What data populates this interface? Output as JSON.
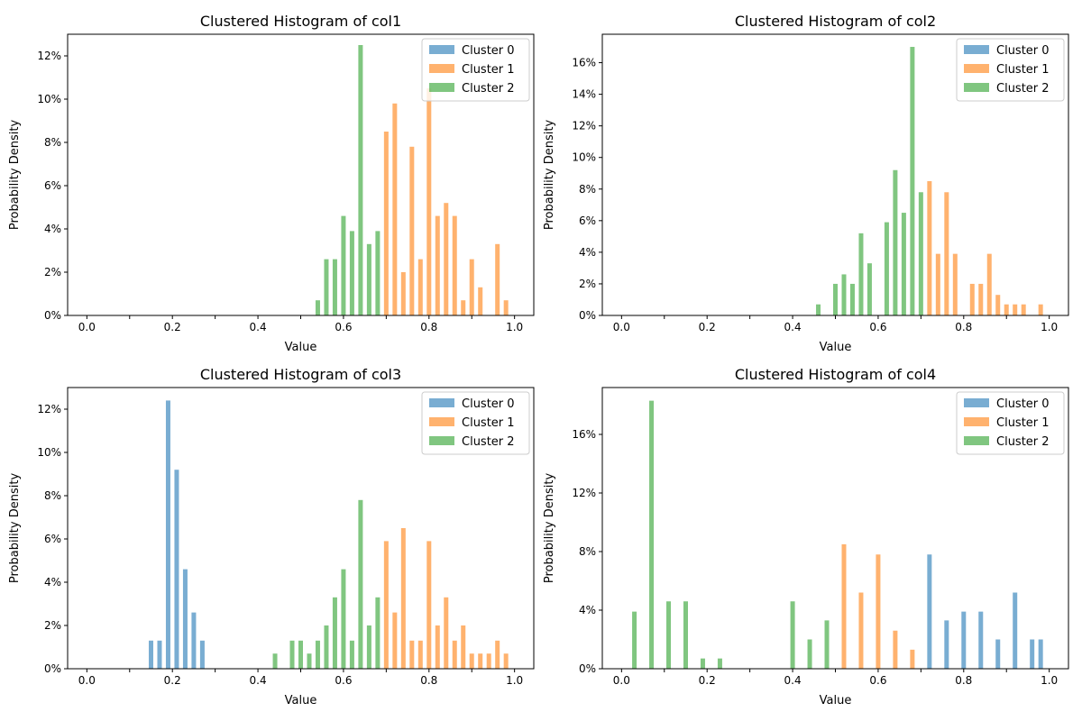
{
  "chart_data": [
    {
      "type": "bar",
      "title": "Clustered Histogram of col1",
      "xlabel": "Value",
      "ylabel": "Probability Density",
      "xlim": [
        -0.045,
        1.045
      ],
      "ylim": [
        0,
        13
      ],
      "x_ticks": [
        0.0,
        0.2,
        0.4,
        0.6,
        0.8,
        1.0
      ],
      "x_tick_labels": [
        "0.0",
        "0.2",
        "0.4",
        "0.6",
        "0.8",
        "1.0"
      ],
      "y_ticks": [
        0,
        2,
        4,
        6,
        8,
        10,
        12
      ],
      "y_tick_labels": [
        "0%",
        "2%",
        "4%",
        "6%",
        "8%",
        "10%",
        "12%"
      ],
      "legend_position": "top-right",
      "series": [
        {
          "name": "Cluster 0",
          "color": "#1f77b4",
          "x": [],
          "values": []
        },
        {
          "name": "Cluster 1",
          "color": "#ff7f0e",
          "x": [
            0.7,
            0.72,
            0.74,
            0.76,
            0.78,
            0.8,
            0.82,
            0.84,
            0.86,
            0.88,
            0.9,
            0.92,
            0.96,
            0.98
          ],
          "values": [
            8.5,
            9.8,
            2.0,
            7.8,
            2.6,
            10.5,
            4.6,
            5.2,
            4.6,
            0.7,
            2.6,
            1.3,
            3.3,
            0.7
          ]
        },
        {
          "name": "Cluster 2",
          "color": "#2ca02c",
          "x": [
            0.54,
            0.56,
            0.58,
            0.6,
            0.62,
            0.64,
            0.66,
            0.68
          ],
          "values": [
            0.7,
            2.6,
            2.6,
            4.6,
            3.9,
            12.5,
            3.3,
            3.9
          ]
        }
      ]
    },
    {
      "type": "bar",
      "title": "Clustered Histogram of col2",
      "xlabel": "Value",
      "ylabel": "Probability Density",
      "xlim": [
        -0.045,
        1.045
      ],
      "ylim": [
        0,
        17.8
      ],
      "x_ticks": [
        0.0,
        0.2,
        0.4,
        0.6,
        0.8,
        1.0
      ],
      "x_tick_labels": [
        "0.0",
        "0.2",
        "0.4",
        "0.6",
        "0.8",
        "1.0"
      ],
      "y_ticks": [
        0,
        2,
        4,
        6,
        8,
        10,
        12,
        14,
        16
      ],
      "y_tick_labels": [
        "0%",
        "2%",
        "4%",
        "6%",
        "8%",
        "10%",
        "12%",
        "14%",
        "16%"
      ],
      "legend_position": "top-right",
      "series": [
        {
          "name": "Cluster 0",
          "color": "#1f77b4",
          "x": [],
          "values": []
        },
        {
          "name": "Cluster 1",
          "color": "#ff7f0e",
          "x": [
            0.72,
            0.74,
            0.76,
            0.78,
            0.82,
            0.84,
            0.86,
            0.88,
            0.9,
            0.92,
            0.94,
            0.98
          ],
          "values": [
            8.5,
            3.9,
            7.8,
            3.9,
            2.0,
            2.0,
            3.9,
            1.3,
            0.7,
            0.7,
            0.7,
            0.7
          ]
        },
        {
          "name": "Cluster 2",
          "color": "#2ca02c",
          "x": [
            0.46,
            0.5,
            0.52,
            0.54,
            0.56,
            0.58,
            0.62,
            0.64,
            0.66,
            0.68,
            0.7
          ],
          "values": [
            0.7,
            2.0,
            2.6,
            2.0,
            5.2,
            3.3,
            5.9,
            9.2,
            6.5,
            17.0,
            7.8
          ]
        }
      ]
    },
    {
      "type": "bar",
      "title": "Clustered Histogram of col3",
      "xlabel": "Value",
      "ylabel": "Probability Density",
      "xlim": [
        -0.045,
        1.045
      ],
      "ylim": [
        0,
        13
      ],
      "x_ticks": [
        0.0,
        0.2,
        0.4,
        0.6,
        0.8,
        1.0
      ],
      "x_tick_labels": [
        "0.0",
        "0.2",
        "0.4",
        "0.6",
        "0.8",
        "1.0"
      ],
      "y_ticks": [
        0,
        2,
        4,
        6,
        8,
        10,
        12
      ],
      "y_tick_labels": [
        "0%",
        "2%",
        "4%",
        "6%",
        "8%",
        "10%",
        "12%"
      ],
      "legend_position": "top-right",
      "series": [
        {
          "name": "Cluster 0",
          "color": "#1f77b4",
          "x": [
            0.15,
            0.17,
            0.19,
            0.21,
            0.23,
            0.25,
            0.27
          ],
          "values": [
            1.3,
            1.3,
            12.4,
            9.2,
            4.6,
            2.6,
            1.3
          ]
        },
        {
          "name": "Cluster 1",
          "color": "#ff7f0e",
          "x": [
            0.7,
            0.72,
            0.74,
            0.76,
            0.78,
            0.8,
            0.82,
            0.84,
            0.86,
            0.88,
            0.9,
            0.92,
            0.94,
            0.96,
            0.98
          ],
          "values": [
            5.9,
            2.6,
            6.5,
            1.3,
            1.3,
            5.9,
            2.0,
            3.3,
            1.3,
            2.0,
            0.7,
            0.7,
            0.7,
            1.3,
            0.7
          ]
        },
        {
          "name": "Cluster 2",
          "color": "#2ca02c",
          "x": [
            0.44,
            0.48,
            0.5,
            0.52,
            0.54,
            0.56,
            0.58,
            0.6,
            0.62,
            0.64,
            0.66,
            0.68
          ],
          "values": [
            0.7,
            1.3,
            1.3,
            0.7,
            1.3,
            2.0,
            3.3,
            4.6,
            1.3,
            7.8,
            2.0,
            3.3
          ]
        }
      ]
    },
    {
      "type": "bar",
      "title": "Clustered Histogram of col4",
      "xlabel": "Value",
      "ylabel": "Probability Density",
      "xlim": [
        -0.045,
        1.045
      ],
      "ylim": [
        0,
        19.2
      ],
      "x_ticks": [
        0.0,
        0.2,
        0.4,
        0.6,
        0.8,
        1.0
      ],
      "x_tick_labels": [
        "0.0",
        "0.2",
        "0.4",
        "0.6",
        "0.8",
        "1.0"
      ],
      "y_ticks": [
        0,
        4,
        8,
        12,
        16
      ],
      "y_tick_labels": [
        "0%",
        "4%",
        "8%",
        "12%",
        "16%"
      ],
      "legend_position": "top-right",
      "series": [
        {
          "name": "Cluster 0",
          "color": "#1f77b4",
          "x": [
            0.72,
            0.76,
            0.8,
            0.84,
            0.88,
            0.92,
            0.96,
            0.98
          ],
          "values": [
            7.8,
            3.3,
            3.9,
            3.9,
            2.0,
            5.2,
            2.0,
            2.0
          ]
        },
        {
          "name": "Cluster 1",
          "color": "#ff7f0e",
          "x": [
            0.52,
            0.56,
            0.6,
            0.64,
            0.68
          ],
          "values": [
            8.5,
            5.2,
            7.8,
            2.6,
            1.3
          ]
        },
        {
          "name": "Cluster 2",
          "color": "#2ca02c",
          "x": [
            0.03,
            0.07,
            0.11,
            0.15,
            0.19,
            0.23,
            0.4,
            0.44,
            0.48
          ],
          "values": [
            3.9,
            18.3,
            4.6,
            4.6,
            0.7,
            0.7,
            4.6,
            2.0,
            3.3
          ]
        }
      ]
    }
  ]
}
